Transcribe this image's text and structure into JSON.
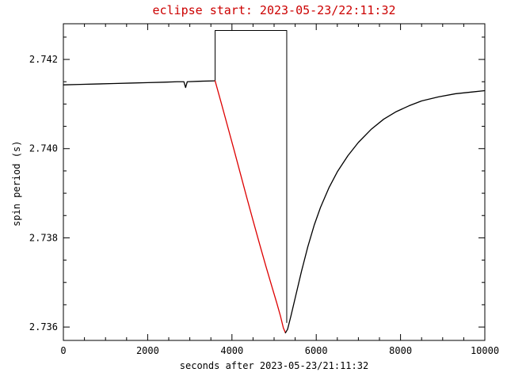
{
  "figure": {
    "title": "eclipse start: 2023-05-23/22:11:32",
    "title_color": "#cc0000",
    "xlabel": "seconds after 2023-05-23/21:11:32",
    "ylabel": "spin period (s)"
  },
  "chart_data": {
    "type": "line",
    "title": "eclipse start: 2023-05-23/22:11:32",
    "xlabel": "seconds after 2023-05-23/21:11:32",
    "ylabel": "spin period (s)",
    "xlim": [
      0,
      10000
    ],
    "ylim": [
      2.7357,
      2.7428
    ],
    "x_ticks": [
      0,
      2000,
      4000,
      6000,
      8000,
      10000
    ],
    "x_tick_labels": [
      "0",
      "2000",
      "4000",
      "6000",
      "8000",
      "10000"
    ],
    "y_ticks": [
      2.736,
      2.738,
      2.74,
      2.742
    ],
    "y_tick_labels": [
      "2.736",
      "2.738",
      "2.740",
      "2.742"
    ],
    "x_minor_step": 500,
    "y_minor_step": 0.0005,
    "grid": false,
    "legend_position": "none",
    "axis_color": "#000000",
    "background": "#ffffff",
    "eclipse_interval_s": [
      3600,
      5300
    ],
    "series": [
      {
        "name": "eclipse-marker-box",
        "color": "#000000",
        "width": 1,
        "points": [
          [
            3600,
            2.74152
          ],
          [
            3600,
            2.74265
          ],
          [
            5300,
            2.74265
          ],
          [
            5300,
            2.7361
          ]
        ]
      },
      {
        "name": "pre-eclipse-spin-period",
        "color": "#000000",
        "width": 1.3,
        "points": [
          [
            0,
            2.74143
          ],
          [
            400,
            2.74144
          ],
          [
            800,
            2.74145
          ],
          [
            1200,
            2.74146
          ],
          [
            1600,
            2.74147
          ],
          [
            2000,
            2.74148
          ],
          [
            2400,
            2.74149
          ],
          [
            2700,
            2.7415
          ],
          [
            2860,
            2.7415
          ],
          [
            2900,
            2.74137
          ],
          [
            2940,
            2.7415
          ],
          [
            3200,
            2.74151
          ],
          [
            3600,
            2.74152
          ]
        ]
      },
      {
        "name": "eclipse-dip",
        "color": "#dd0000",
        "width": 1.3,
        "points": [
          [
            3600,
            2.74152
          ],
          [
            3750,
            2.74101
          ],
          [
            3900,
            2.74049
          ],
          [
            4050,
            2.73997
          ],
          [
            4200,
            2.73944
          ],
          [
            4350,
            2.73891
          ],
          [
            4500,
            2.73839
          ],
          [
            4650,
            2.73788
          ],
          [
            4800,
            2.73738
          ],
          [
            4950,
            2.7369
          ],
          [
            5060,
            2.73655
          ],
          [
            5150,
            2.73625
          ],
          [
            5220,
            2.73598
          ],
          [
            5270,
            2.73587
          ]
        ]
      },
      {
        "name": "post-eclipse-recovery",
        "color": "#000000",
        "width": 1.3,
        "points": [
          [
            5270,
            2.73587
          ],
          [
            5320,
            2.73595
          ],
          [
            5400,
            2.73625
          ],
          [
            5500,
            2.73665
          ],
          [
            5650,
            2.73725
          ],
          [
            5800,
            2.7378
          ],
          [
            5950,
            2.73828
          ],
          [
            6100,
            2.73868
          ],
          [
            6300,
            2.73912
          ],
          [
            6500,
            2.73948
          ],
          [
            6750,
            2.73984
          ],
          [
            7000,
            2.74014
          ],
          [
            7300,
            2.74043
          ],
          [
            7600,
            2.74066
          ],
          [
            7900,
            2.74083
          ],
          [
            8200,
            2.74096
          ],
          [
            8500,
            2.74107
          ],
          [
            8900,
            2.74116
          ],
          [
            9300,
            2.74123
          ],
          [
            9700,
            2.74127
          ],
          [
            10000,
            2.7413
          ]
        ]
      }
    ]
  }
}
